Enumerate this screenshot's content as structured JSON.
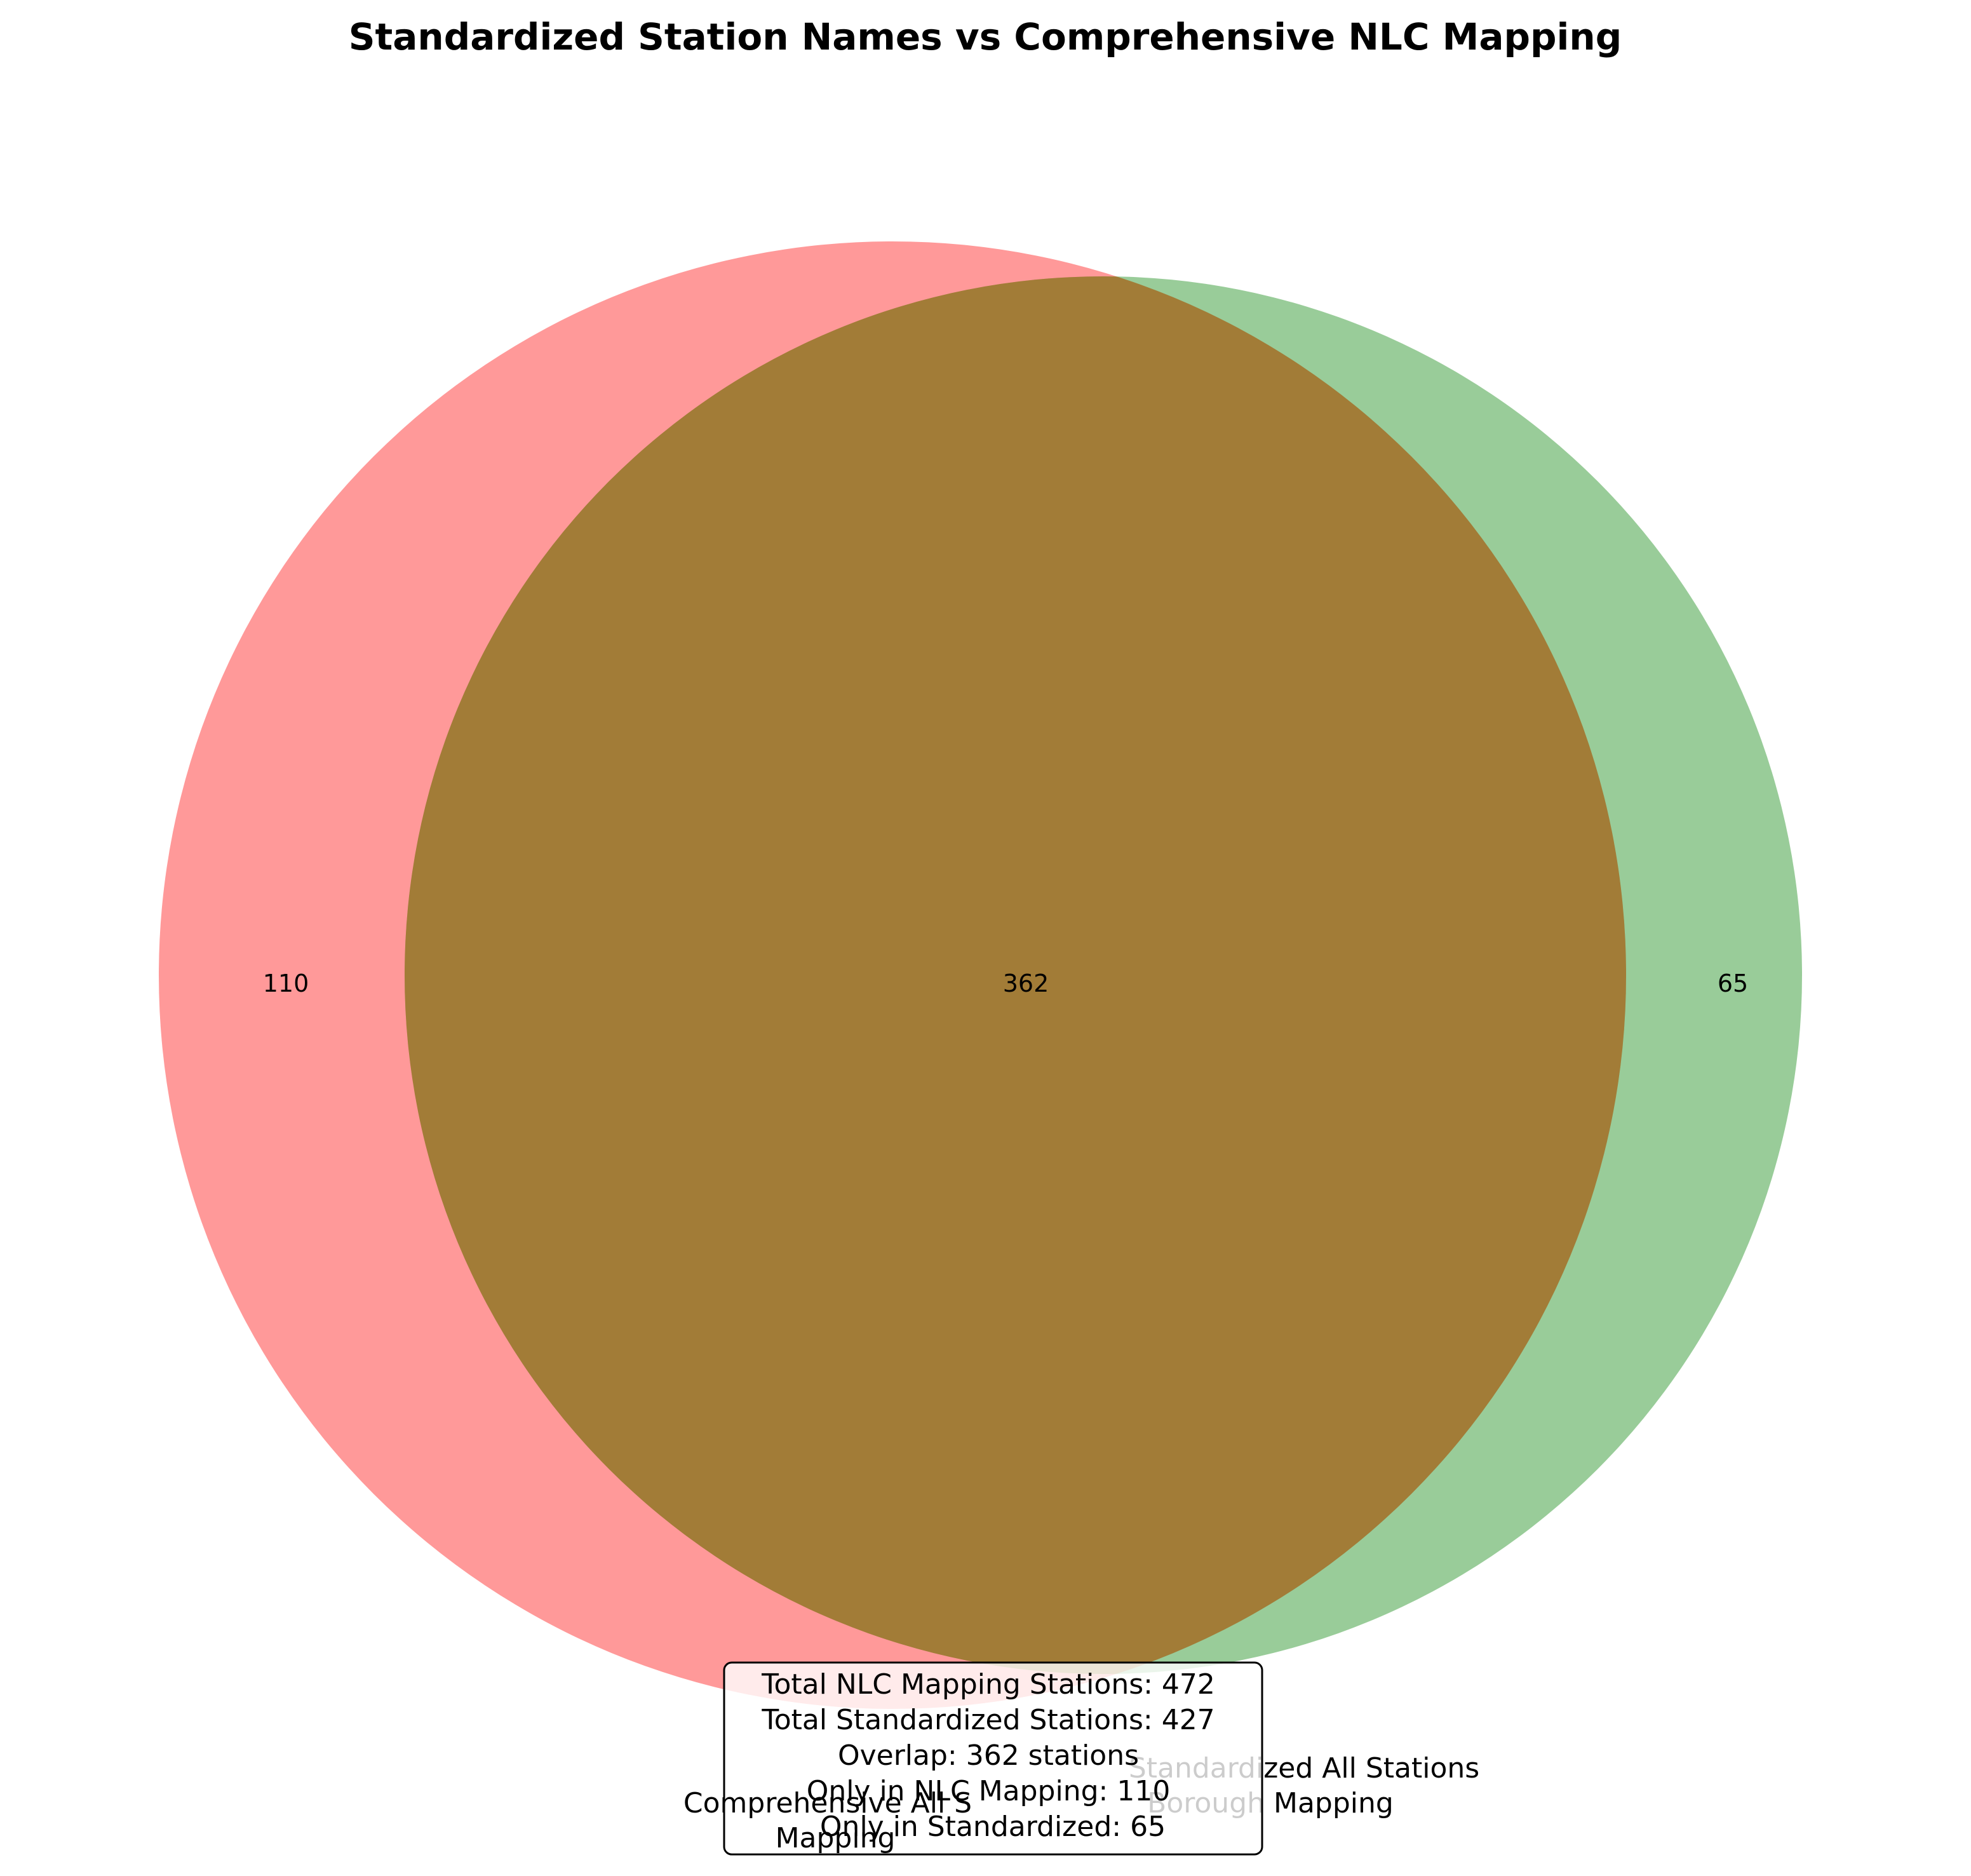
{
  "chart_data": {
    "type": "venn",
    "title": "Standardized Station Names vs Comprehensive NLC Mapping",
    "sets": [
      {
        "name": "Comprehensive All Stations Borough Mapping",
        "label_lines": [
          "Comprehensive All S",
          "Mapping"
        ],
        "size": 472,
        "color": "#ff0000"
      },
      {
        "name": "Standardized All Stations Borough Mapping",
        "label_lines": [
          "Standardized All Stations",
          "Borough Mapping"
        ],
        "size": 427,
        "color": "#008000"
      }
    ],
    "regions": {
      "only_a": "110",
      "overlap": "362",
      "only_b": "65"
    },
    "overlap_color": "#b06000",
    "stats_lines": [
      "Total NLC Mapping Stations: 472",
      "Total Standardized Stations: 427",
      "Overlap: 362 stations",
      "Only in NLC Mapping: 110",
      "Only in Standardized: 65"
    ]
  }
}
